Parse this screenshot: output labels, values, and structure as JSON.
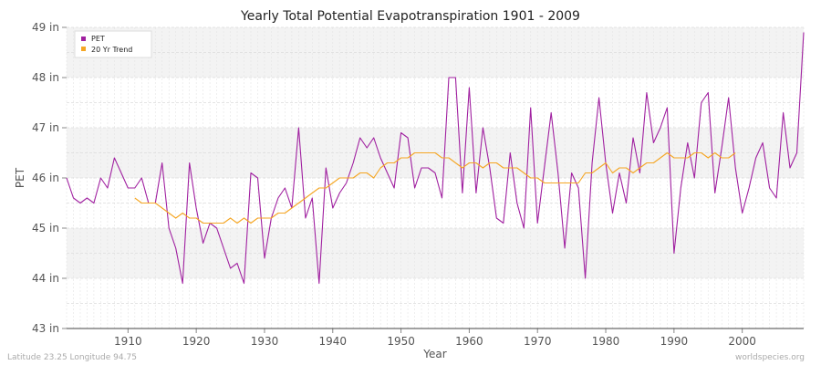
{
  "chart_data": {
    "type": "line",
    "title": "Yearly Total Potential Evapotranspiration 1901 - 2009",
    "xlabel": "Year",
    "ylabel": "PET",
    "xlim": [
      1901,
      2009
    ],
    "ylim": [
      43,
      49
    ],
    "x_ticks": [
      "1910",
      "1920",
      "1930",
      "1940",
      "1950",
      "1960",
      "1970",
      "1980",
      "1990",
      "2000"
    ],
    "x_tick_values": [
      1910,
      1920,
      1930,
      1940,
      1950,
      1960,
      1970,
      1980,
      1990,
      2000
    ],
    "y_ticks": [
      "43 in",
      "44 in",
      "45 in",
      "46 in",
      "47 in",
      "48 in",
      "49 in"
    ],
    "y_tick_values": [
      43,
      44,
      45,
      46,
      47,
      48,
      49
    ],
    "grid": true,
    "legend_position": "top-left",
    "series": [
      {
        "name": "PET",
        "color": "#a020a0",
        "x": [
          1901,
          1902,
          1903,
          1904,
          1905,
          1906,
          1907,
          1908,
          1909,
          1910,
          1911,
          1912,
          1913,
          1914,
          1915,
          1916,
          1917,
          1918,
          1919,
          1920,
          1921,
          1922,
          1923,
          1924,
          1925,
          1926,
          1927,
          1928,
          1929,
          1930,
          1931,
          1932,
          1933,
          1934,
          1935,
          1936,
          1937,
          1938,
          1939,
          1940,
          1941,
          1942,
          1943,
          1944,
          1945,
          1946,
          1947,
          1948,
          1949,
          1950,
          1951,
          1952,
          1953,
          1954,
          1955,
          1956,
          1957,
          1958,
          1959,
          1960,
          1961,
          1962,
          1963,
          1964,
          1965,
          1966,
          1967,
          1968,
          1969,
          1970,
          1971,
          1972,
          1973,
          1974,
          1975,
          1976,
          1977,
          1978,
          1979,
          1980,
          1981,
          1982,
          1983,
          1984,
          1985,
          1986,
          1987,
          1988,
          1989,
          1990,
          1991,
          1992,
          1993,
          1994,
          1995,
          1996,
          1997,
          1998,
          1999,
          2000,
          2001,
          2002,
          2003,
          2004,
          2005,
          2006,
          2007,
          2008,
          2009
        ],
        "values": [
          46.0,
          45.6,
          45.5,
          45.6,
          45.5,
          46.0,
          45.8,
          46.4,
          46.1,
          45.8,
          45.8,
          46.0,
          45.5,
          45.5,
          46.3,
          45.0,
          44.6,
          43.9,
          46.3,
          45.4,
          44.7,
          45.1,
          45.0,
          44.6,
          44.2,
          44.3,
          43.9,
          46.1,
          46.0,
          44.4,
          45.2,
          45.6,
          45.8,
          45.4,
          47.0,
          45.2,
          45.6,
          43.9,
          46.2,
          45.4,
          45.7,
          45.9,
          46.3,
          46.8,
          46.6,
          46.8,
          46.4,
          46.1,
          45.8,
          46.9,
          46.8,
          45.8,
          46.2,
          46.2,
          46.1,
          45.6,
          48.0,
          48.0,
          45.7,
          47.8,
          45.7,
          47.0,
          46.2,
          45.2,
          45.1,
          46.5,
          45.5,
          45.0,
          47.4,
          45.1,
          46.2,
          47.3,
          46.1,
          44.6,
          46.1,
          45.8,
          44.0,
          46.3,
          47.6,
          46.3,
          45.3,
          46.1,
          45.5,
          46.8,
          46.1,
          47.7,
          46.7,
          47.0,
          47.4,
          44.5,
          45.8,
          46.7,
          46.0,
          47.5,
          47.7,
          45.7,
          46.6,
          47.6,
          46.2,
          45.3,
          45.8,
          46.4,
          46.7,
          45.8,
          45.6,
          47.3,
          46.2,
          46.5,
          48.9
        ]
      },
      {
        "name": "20 Yr Trend",
        "color": "#f5a623",
        "x": [
          1911,
          1912,
          1913,
          1914,
          1915,
          1916,
          1917,
          1918,
          1919,
          1920,
          1921,
          1922,
          1923,
          1924,
          1925,
          1926,
          1927,
          1928,
          1929,
          1930,
          1931,
          1932,
          1933,
          1934,
          1935,
          1936,
          1937,
          1938,
          1939,
          1940,
          1941,
          1942,
          1943,
          1944,
          1945,
          1946,
          1947,
          1948,
          1949,
          1950,
          1951,
          1952,
          1953,
          1954,
          1955,
          1956,
          1957,
          1958,
          1959,
          1960,
          1961,
          1962,
          1963,
          1964,
          1965,
          1966,
          1967,
          1968,
          1969,
          1970,
          1971,
          1972,
          1973,
          1974,
          1975,
          1976,
          1977,
          1978,
          1979,
          1980,
          1981,
          1982,
          1983,
          1984,
          1985,
          1986,
          1987,
          1988,
          1989,
          1990,
          1991,
          1992,
          1993,
          1994,
          1995,
          1996,
          1997,
          1998,
          1999
        ],
        "values": [
          45.6,
          45.5,
          45.5,
          45.5,
          45.4,
          45.3,
          45.2,
          45.3,
          45.2,
          45.2,
          45.1,
          45.1,
          45.1,
          45.1,
          45.2,
          45.1,
          45.2,
          45.1,
          45.2,
          45.2,
          45.2,
          45.3,
          45.3,
          45.4,
          45.5,
          45.6,
          45.7,
          45.8,
          45.8,
          45.9,
          46.0,
          46.0,
          46.0,
          46.1,
          46.1,
          46.0,
          46.2,
          46.3,
          46.3,
          46.4,
          46.4,
          46.5,
          46.5,
          46.5,
          46.5,
          46.4,
          46.4,
          46.3,
          46.2,
          46.3,
          46.3,
          46.2,
          46.3,
          46.3,
          46.2,
          46.2,
          46.2,
          46.1,
          46.0,
          46.0,
          45.9,
          45.9,
          45.9,
          45.9,
          45.9,
          45.9,
          46.1,
          46.1,
          46.2,
          46.3,
          46.1,
          46.2,
          46.2,
          46.1,
          46.2,
          46.3,
          46.3,
          46.4,
          46.5,
          46.4,
          46.4,
          46.4,
          46.5,
          46.5,
          46.4,
          46.5,
          46.4,
          46.4,
          46.5
        ]
      }
    ]
  },
  "footer": {
    "location": "Latitude 23.25 Longitude 94.75",
    "source": "worldspecies.org"
  }
}
